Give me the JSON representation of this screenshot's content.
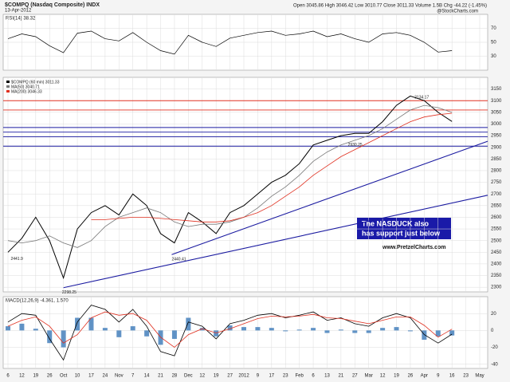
{
  "chart_data": {
    "type": "line",
    "title": "$COMPQ (Nasdaq Composite) INDX",
    "subtitle": "13-Apr-2012",
    "quote": "Open 3045.86  High 3046.42  Low 3010.77  Close 3011.33  Volume 1.5B  Chg -44.22 (-1.45%)",
    "credit": "@StockCharts.com",
    "categories": [
      "6",
      "12",
      "19",
      "26",
      "Oct",
      "10",
      "17",
      "24",
      "Nov",
      "7",
      "14",
      "21",
      "28",
      "Dec",
      "12",
      "19",
      "27",
      "2012",
      "9",
      "17",
      "23",
      "Feb",
      "6",
      "13",
      "21",
      "27",
      "Mar",
      "12",
      "19",
      "26",
      "Apr",
      "9",
      "16",
      "23",
      "May"
    ],
    "ylim": [
      2280,
      3200
    ],
    "yticks": [
      2300,
      2350,
      2400,
      2450,
      2500,
      2550,
      2600,
      2650,
      2700,
      2750,
      2800,
      2850,
      2900,
      2950,
      3000,
      3050,
      3100,
      3150
    ],
    "grid": true,
    "series": [
      {
        "name": "$COMPQ (60 min) 3011.33",
        "color": "#000000",
        "values": [
          2450,
          2510,
          2600,
          2500,
          2340,
          2550,
          2620,
          2650,
          2610,
          2700,
          2650,
          2530,
          2490,
          2620,
          2580,
          2530,
          2620,
          2650,
          2700,
          2750,
          2780,
          2830,
          2910,
          2930,
          2950,
          2960,
          2960,
          3010,
          3080,
          3120,
          3100,
          3050,
          3011,
          null,
          null
        ]
      },
      {
        "name": "MA(50) 3040.71",
        "color": "#777777",
        "values": [
          2500,
          2490,
          2500,
          2520,
          2490,
          2470,
          2500,
          2560,
          2600,
          2620,
          2640,
          2620,
          2580,
          2560,
          2570,
          2570,
          2580,
          2600,
          2640,
          2690,
          2730,
          2780,
          2840,
          2880,
          2910,
          2930,
          2950,
          2980,
          3020,
          3060,
          3080,
          3070,
          3050,
          null,
          null
        ]
      },
      {
        "name": "MA(200) 3046.33",
        "color": "#e03020",
        "values": [
          null,
          null,
          null,
          null,
          null,
          null,
          2590,
          2590,
          2595,
          2600,
          2600,
          2595,
          2590,
          2585,
          2580,
          2580,
          2585,
          2600,
          2620,
          2650,
          2690,
          2730,
          2780,
          2820,
          2860,
          2890,
          2920,
          2950,
          2980,
          3010,
          3030,
          3040,
          3046,
          null,
          null
        ]
      }
    ],
    "levels": [
      {
        "color": "#e03020",
        "values": [
          3100,
          3060
        ]
      },
      {
        "color": "#1a1aa0",
        "values": [
          2985,
          2965,
          2945,
          2905
        ]
      }
    ],
    "trendlines": [
      {
        "color": "#1a1aa0",
        "from": [
          4,
          2298
        ],
        "to": [
          35,
          2700
        ]
      },
      {
        "color": "#1a1aa0",
        "from": [
          11.8,
          2440
        ],
        "to": [
          35,
          2935
        ]
      }
    ],
    "price_labels": [
      {
        "index": 0.2,
        "value": 2441.9
      },
      {
        "index": 3.9,
        "value": 2298.25
      },
      {
        "index": 11.8,
        "value": 2440.41
      },
      {
        "index": 24.5,
        "value": 2930.25
      },
      {
        "index": 29.3,
        "value": 3134.17
      }
    ],
    "annotation": [
      "The NASDUCK also",
      "has support just below"
    ],
    "website": "www.PretzelCharts.com",
    "rsi": {
      "name": "RSI(14) 38.32",
      "color": "#000000",
      "ylim": [
        10,
        90
      ],
      "yticks": [
        30,
        50,
        70
      ],
      "values": [
        55,
        62,
        58,
        45,
        35,
        63,
        66,
        55,
        52,
        64,
        50,
        38,
        33,
        60,
        50,
        44,
        56,
        60,
        64,
        66,
        60,
        62,
        66,
        58,
        62,
        55,
        50,
        62,
        64,
        60,
        50,
        36,
        38,
        null,
        null
      ]
    },
    "macd": {
      "name": "MACD(12,26,9) -4.361, 1.570",
      "ylim": [
        -45,
        40
      ],
      "yticks": [
        -40,
        -20,
        0,
        20
      ],
      "series": [
        {
          "color": "#000000",
          "values": [
            10,
            20,
            18,
            -10,
            -35,
            10,
            30,
            25,
            10,
            25,
            5,
            -25,
            -30,
            10,
            5,
            -10,
            8,
            12,
            18,
            20,
            15,
            18,
            22,
            12,
            15,
            8,
            5,
            15,
            20,
            15,
            -5,
            -15,
            -4.361,
            null,
            null
          ]
        },
        {
          "color": "#e03020",
          "values": [
            5,
            12,
            16,
            5,
            -15,
            -5,
            15,
            22,
            18,
            20,
            12,
            -8,
            -20,
            -5,
            2,
            -3,
            2,
            8,
            14,
            17,
            16,
            17,
            19,
            15,
            14,
            11,
            8,
            12,
            16,
            16,
            6,
            -8,
            1.57,
            null,
            null
          ]
        }
      ],
      "histogram": {
        "color": "#3a78b8",
        "values": [
          5,
          8,
          2,
          -15,
          -20,
          15,
          15,
          3,
          -8,
          5,
          -7,
          -17,
          -10,
          15,
          3,
          -7,
          6,
          4,
          4,
          3,
          -1,
          1,
          3,
          -3,
          1,
          -3,
          -3,
          3,
          4,
          -1,
          -11,
          -7,
          -5.93,
          null,
          null
        ]
      }
    }
  }
}
